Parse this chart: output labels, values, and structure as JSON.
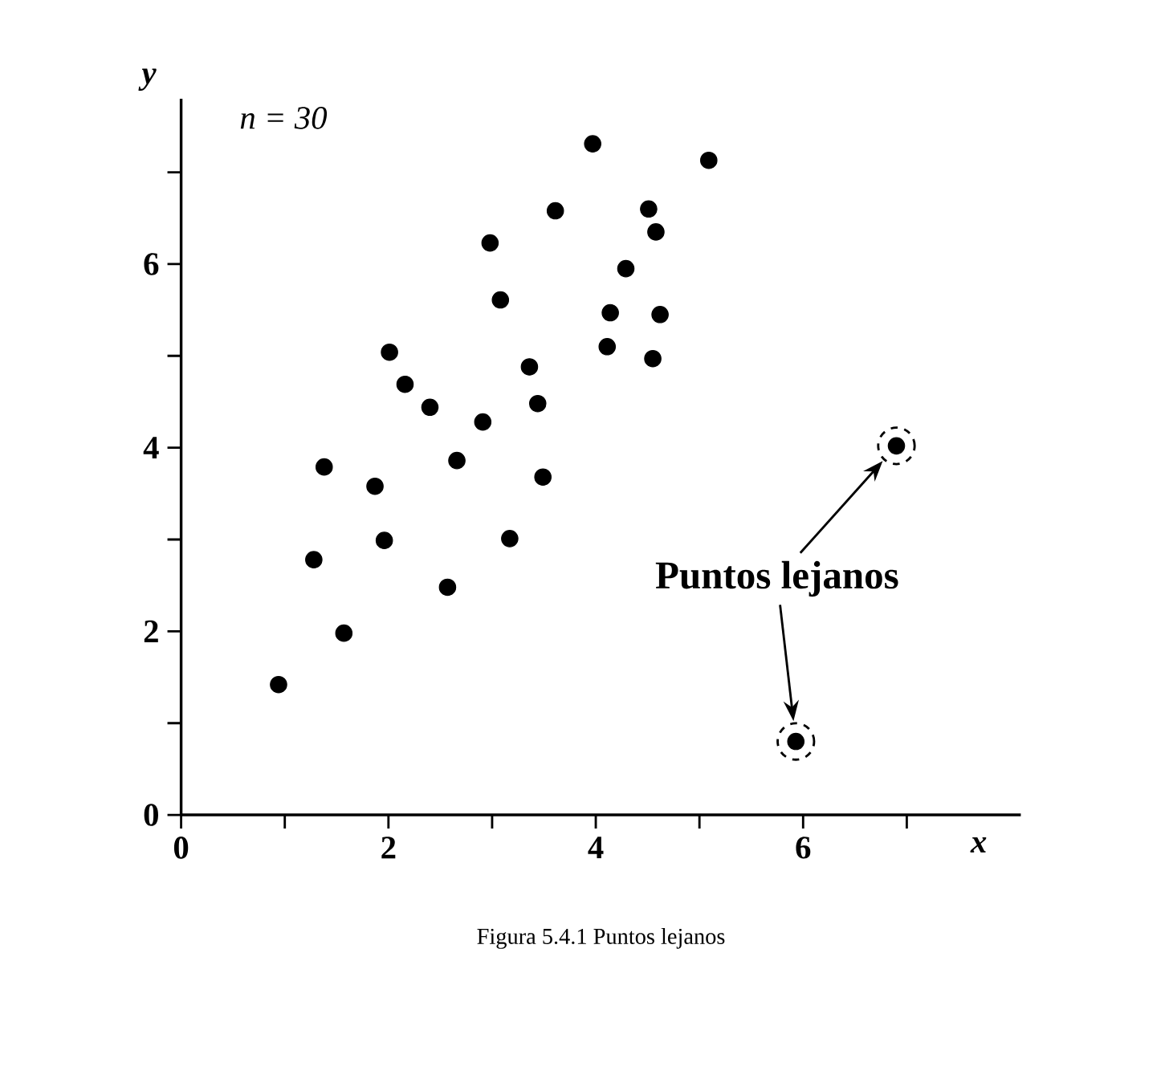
{
  "chart_data": {
    "type": "scatter",
    "xlabel": "x",
    "ylabel": "y",
    "annotations": [
      "*n* = 30",
      "Puntos lejanos",
      "Figura 5.4.1   Puntos lejanos"
    ],
    "xlim": [
      0,
      8.1
    ],
    "ylim": [
      0,
      7.8
    ],
    "xticks": [
      0,
      {
        "value": 1,
        "label": null
      },
      2,
      {
        "value": 3,
        "label": null
      },
      4,
      {
        "value": 5,
        "label": null
      },
      6,
      {
        "value": 7,
        "label": null
      }
    ],
    "yticks": [
      0,
      {
        "value": 1,
        "label": null
      },
      2,
      {
        "value": 3,
        "label": null
      },
      4,
      {
        "value": 5,
        "label": null
      },
      6,
      {
        "value": 7,
        "label": null
      }
    ],
    "grid": false,
    "series": [
      {
        "color": "#000000",
        "x": [
          0.94,
          1.57,
          1.28,
          1.38,
          1.96,
          1.87,
          2.01,
          2.16,
          2.4,
          2.57,
          2.66,
          2.91,
          2.98,
          3.08,
          3.17,
          3.36,
          3.44,
          3.49,
          3.61,
          3.97,
          4.11,
          4.14,
          4.29,
          4.51,
          4.58,
          4.55,
          4.62,
          5.09
        ],
        "values": [
          1.42,
          1.98,
          2.78,
          3.79,
          2.99,
          3.58,
          5.04,
          4.69,
          4.44,
          2.48,
          3.86,
          4.28,
          6.23,
          5.61,
          3.01,
          4.88,
          4.48,
          3.68,
          6.58,
          7.31,
          5.1,
          5.47,
          5.95,
          6.6,
          6.35,
          4.97,
          5.45,
          7.13
        ]
      },
      {
        "color": "#000000",
        "x": [
          5.93,
          6.9
        ],
        "values": [
          0.8,
          4.02
        ]
      }
    ]
  }
}
